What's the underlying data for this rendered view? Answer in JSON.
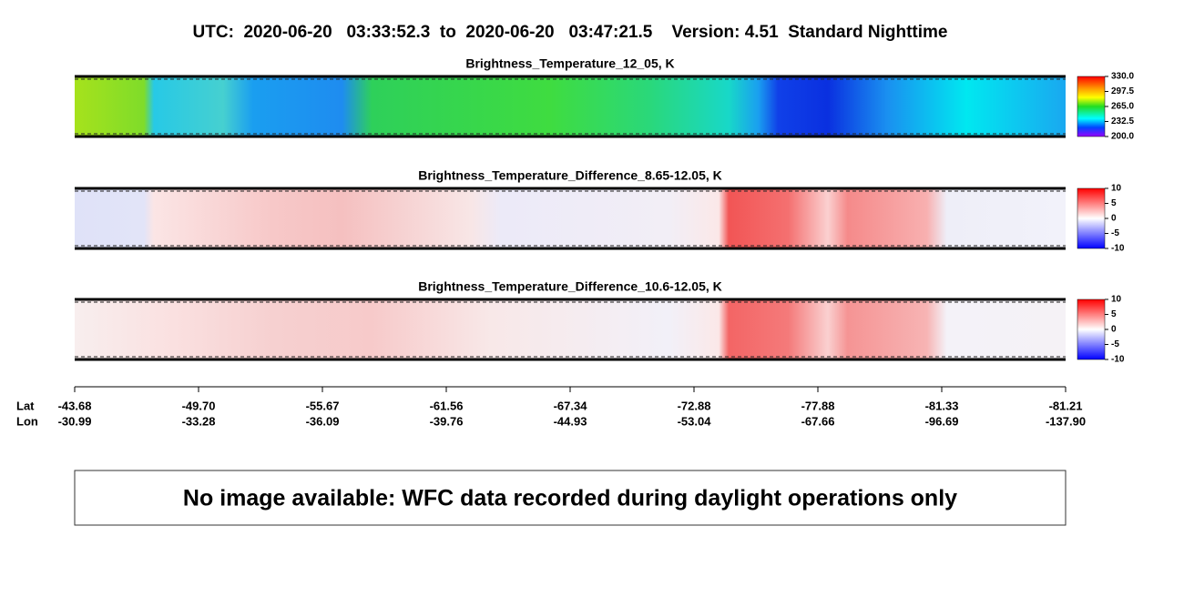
{
  "header": {
    "title": "UTC:  2020-06-20   03:33:52.3  to  2020-06-20   03:47:21.5    Version: 4.51  Standard Nighttime"
  },
  "panels": [
    {
      "title": "Brightness_Temperature_12_05, K",
      "colorbar_labels": [
        "330.0",
        "297.5",
        "265.0",
        "232.5",
        "200.0"
      ]
    },
    {
      "title": "Brightness_Temperature_Difference_8.65-12.05, K",
      "colorbar_labels": [
        "10",
        "5",
        "0",
        "-5",
        "-10"
      ]
    },
    {
      "title": "Brightness_Temperature_Difference_10.6-12.05, K",
      "colorbar_labels": [
        "10",
        "5",
        "0",
        "-5",
        "-10"
      ]
    }
  ],
  "axis": {
    "row_labels": [
      "Lat",
      "Lon"
    ],
    "ticks": [
      {
        "lat": "-43.68",
        "lon": "-30.99"
      },
      {
        "lat": "-49.70",
        "lon": "-33.28"
      },
      {
        "lat": "-55.67",
        "lon": "-36.09"
      },
      {
        "lat": "-61.56",
        "lon": "-39.76"
      },
      {
        "lat": "-67.34",
        "lon": "-44.93"
      },
      {
        "lat": "-72.88",
        "lon": "-53.04"
      },
      {
        "lat": "-77.88",
        "lon": "-67.66"
      },
      {
        "lat": "-81.33",
        "lon": "-96.69"
      },
      {
        "lat": "-81.21",
        "lon": "-137.90"
      }
    ]
  },
  "notice": "No image available: WFC data recorded during daylight operations only"
}
